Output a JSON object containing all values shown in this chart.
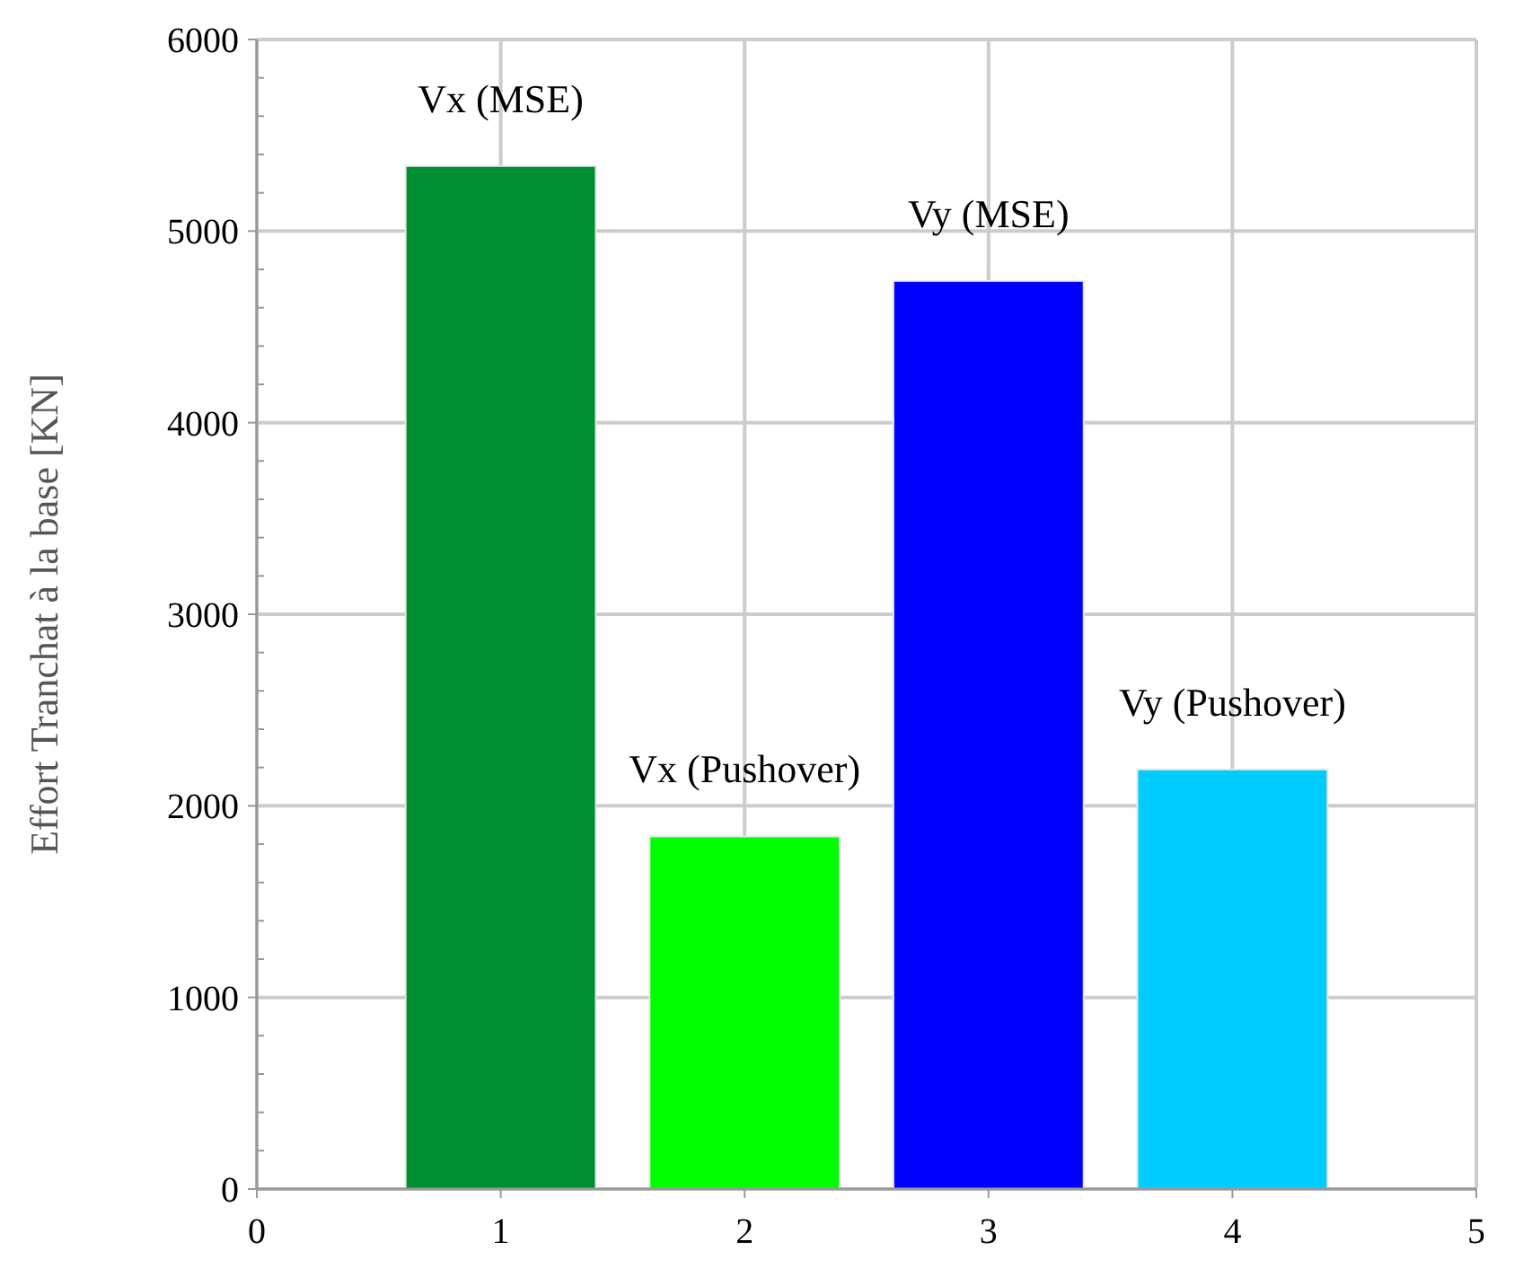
{
  "chart_data": {
    "type": "bar",
    "ylabel": "Effort Tranchat à la base [KN]",
    "x": [
      1,
      2,
      3,
      4
    ],
    "values": [
      5340,
      1840,
      4740,
      2190
    ],
    "colors": [
      "#008f30",
      "#00ff00",
      "#0000ff",
      "#00ccff"
    ],
    "xlim": [
      0,
      5
    ],
    "xticks": [
      0,
      1,
      2,
      3,
      4,
      5
    ],
    "ylim": [
      0,
      6000
    ],
    "yticks": [
      0,
      1000,
      2000,
      3000,
      4000,
      5000,
      6000
    ],
    "grid": true,
    "annotations": [
      "Vx (MSE)",
      "Vx (Pushover)",
      "Vy (MSE)",
      "Vy (Pushover)"
    ]
  }
}
